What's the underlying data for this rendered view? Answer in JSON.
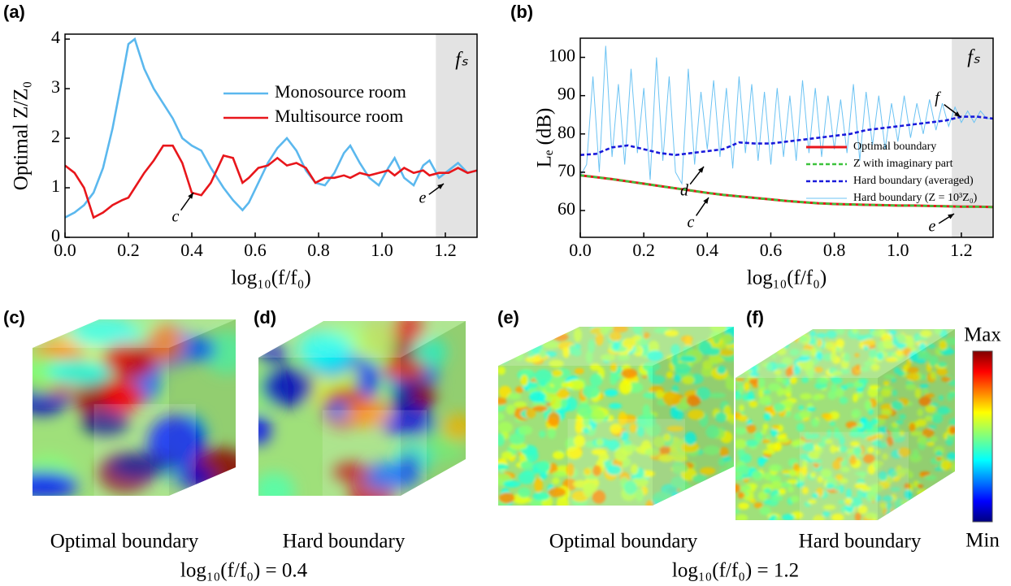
{
  "chart_data": [
    {
      "type": "line",
      "panel": "(a)",
      "ylabel": "Optimal Z/Z₀",
      "xlabel": "log₁₀(f/f₀)",
      "xlim": [
        0,
        1.3
      ],
      "ylim": [
        0,
        4.1
      ],
      "xticks": [
        {
          "value": 0,
          "label": "0.0"
        },
        0.2,
        0.4,
        0.6,
        0.8,
        {
          "value": 1,
          "label": "1.0"
        },
        1.2
      ],
      "yticks": [
        0,
        1,
        2,
        3,
        4
      ],
      "shaded_xrange": [
        1.17,
        1.3
      ],
      "legend": "upper right",
      "annotations": [
        "fₛ",
        "c",
        "e"
      ],
      "x": [
        0,
        0.03,
        0.06,
        0.09,
        0.12,
        0.15,
        0.18,
        0.2,
        0.22,
        0.25,
        0.28,
        0.31,
        0.34,
        0.37,
        0.4,
        0.43,
        0.46,
        0.5,
        0.53,
        0.56,
        0.58,
        0.61,
        0.64,
        0.67,
        0.7,
        0.73,
        0.76,
        0.79,
        0.82,
        0.85,
        0.88,
        0.9,
        0.93,
        0.96,
        0.99,
        1.02,
        1.04,
        1.07,
        1.1,
        1.13,
        1.15,
        1.18,
        1.21,
        1.24,
        1.27,
        1.3
      ],
      "series": [
        {
          "name": "Monosource room",
          "color": "#5bb8ee",
          "style": "solid",
          "values": [
            0.4,
            0.5,
            0.65,
            0.9,
            1.4,
            2.2,
            3.2,
            3.9,
            4.0,
            3.4,
            3.0,
            2.7,
            2.4,
            2.0,
            1.85,
            1.75,
            1.4,
            1.0,
            0.75,
            0.55,
            0.7,
            1.1,
            1.5,
            1.8,
            2.0,
            1.75,
            1.35,
            1.1,
            1.05,
            1.3,
            1.7,
            1.85,
            1.5,
            1.2,
            1.05,
            1.4,
            1.6,
            1.2,
            1.05,
            1.45,
            1.55,
            1.2,
            1.35,
            1.5,
            1.3,
            1.35
          ]
        },
        {
          "name": "Multisource room",
          "color": "#e8161b",
          "style": "solid",
          "values": [
            1.45,
            1.3,
            1.0,
            0.4,
            0.5,
            0.65,
            0.75,
            0.8,
            1.0,
            1.3,
            1.55,
            1.85,
            1.85,
            1.5,
            0.9,
            0.85,
            1.1,
            1.65,
            1.6,
            1.1,
            1.2,
            1.4,
            1.45,
            1.6,
            1.45,
            1.5,
            1.4,
            1.1,
            1.2,
            1.2,
            1.25,
            1.2,
            1.3,
            1.25,
            1.3,
            1.35,
            1.25,
            1.4,
            1.3,
            1.35,
            1.25,
            1.3,
            1.3,
            1.4,
            1.3,
            1.35
          ]
        }
      ]
    },
    {
      "type": "line",
      "panel": "(b)",
      "ylabel": "Lₑ (dB)",
      "xlabel": "log₁₀(f/f₀)",
      "xlim": [
        0,
        1.3
      ],
      "ylim": [
        53,
        105
      ],
      "xticks": [
        {
          "value": 0,
          "label": "0.0"
        },
        0.2,
        0.4,
        0.6,
        0.8,
        {
          "value": 1,
          "label": "1.0"
        },
        1.2
      ],
      "yticks": [
        60,
        70,
        80,
        90,
        100
      ],
      "shaded_xrange": [
        1.17,
        1.3
      ],
      "legend": "center right",
      "annotations": [
        "fₛ",
        "f",
        "d",
        "c",
        "e"
      ],
      "series": [
        {
          "name": "Hard boundary (Z = 10³Z₀)",
          "color": "#6cc3f3",
          "style": "thin",
          "x": [
            0,
            0.02,
            0.04,
            0.06,
            0.08,
            0.1,
            0.12,
            0.14,
            0.16,
            0.18,
            0.2,
            0.22,
            0.24,
            0.26,
            0.28,
            0.3,
            0.32,
            0.34,
            0.36,
            0.38,
            0.4,
            0.42,
            0.44,
            0.46,
            0.48,
            0.5,
            0.52,
            0.54,
            0.56,
            0.58,
            0.6,
            0.62,
            0.64,
            0.66,
            0.68,
            0.7,
            0.72,
            0.74,
            0.76,
            0.78,
            0.8,
            0.82,
            0.84,
            0.86,
            0.88,
            0.9,
            0.92,
            0.94,
            0.96,
            0.98,
            1,
            1.02,
            1.04,
            1.06,
            1.08,
            1.1,
            1.12,
            1.14,
            1.16,
            1.18,
            1.2,
            1.22,
            1.24,
            1.26,
            1.28,
            1.3
          ],
          "values": [
            69,
            72,
            95,
            70,
            103,
            74,
            93,
            72,
            97,
            75,
            92,
            68,
            100,
            73,
            95,
            70,
            67,
            97,
            72,
            91,
            76,
            94,
            74,
            92,
            71,
            95,
            75,
            93,
            73,
            91,
            72,
            92,
            74,
            90,
            73,
            94,
            75,
            92,
            74,
            90,
            76,
            89,
            75,
            93,
            73,
            91,
            77,
            90,
            76,
            88,
            78,
            90,
            79,
            88,
            80,
            89,
            81,
            88,
            82,
            87,
            83,
            86,
            83,
            86,
            84,
            84
          ]
        },
        {
          "name": "Optimal boundary",
          "color": "#e8161b",
          "style": "thick",
          "x": [
            0,
            0.05,
            0.1,
            0.15,
            0.2,
            0.25,
            0.3,
            0.35,
            0.4,
            0.45,
            0.5,
            0.55,
            0.6,
            0.65,
            0.7,
            0.75,
            0.8,
            0.85,
            0.9,
            0.95,
            1,
            1.05,
            1.1,
            1.15,
            1.2,
            1.25,
            1.3
          ],
          "values": [
            69.2,
            68.7,
            68.2,
            67.6,
            67.0,
            66.4,
            65.8,
            65.2,
            64.6,
            64.1,
            63.7,
            63.3,
            62.9,
            62.5,
            62.2,
            61.9,
            61.7,
            61.6,
            61.5,
            61.4,
            61.3,
            61.3,
            61.2,
            61.1,
            61.0,
            61.0,
            60.9
          ]
        },
        {
          "name": "Z with imaginary part",
          "color": "#3cc23c",
          "style": "dashed",
          "x": [
            0,
            0.05,
            0.1,
            0.15,
            0.2,
            0.25,
            0.3,
            0.35,
            0.4,
            0.45,
            0.5,
            0.55,
            0.6,
            0.65,
            0.7,
            0.75,
            0.8,
            0.85,
            0.9,
            0.95,
            1,
            1.05,
            1.1,
            1.15,
            1.2,
            1.25,
            1.3
          ],
          "values": [
            69.2,
            68.7,
            68.2,
            67.6,
            67.0,
            66.4,
            65.8,
            65.2,
            64.6,
            64.1,
            63.7,
            63.3,
            62.9,
            62.5,
            62.2,
            61.9,
            61.7,
            61.6,
            61.5,
            61.4,
            61.3,
            61.3,
            61.2,
            61.1,
            61.0,
            61.0,
            60.9
          ]
        },
        {
          "name": "Hard boundary (averaged)",
          "color": "#1a1adb",
          "style": "dashed",
          "x": [
            0,
            0.05,
            0.1,
            0.15,
            0.2,
            0.25,
            0.3,
            0.35,
            0.4,
            0.45,
            0.5,
            0.55,
            0.6,
            0.65,
            0.7,
            0.75,
            0.8,
            0.85,
            0.9,
            0.95,
            1,
            1.05,
            1.1,
            1.15,
            1.2,
            1.25,
            1.3
          ],
          "values": [
            74.5,
            74.8,
            76.5,
            77.0,
            76.0,
            75.0,
            74.5,
            75.0,
            75.5,
            76.0,
            77.8,
            77.5,
            77.5,
            78.0,
            78.5,
            79.0,
            79.5,
            80.0,
            81.0,
            81.5,
            82.0,
            82.5,
            83.0,
            83.5,
            84.5,
            84.5,
            84.0
          ]
        }
      ]
    }
  ],
  "panels": [
    {
      "label": "(c)",
      "caption": "Optimal boundary"
    },
    {
      "label": "(d)",
      "caption": "Hard boundary"
    },
    {
      "label": "(e)",
      "caption": "Optimal boundary"
    },
    {
      "label": "(f)",
      "caption": "Hard boundary"
    }
  ],
  "frequency_labels": [
    "log₁₀(f/f₀) = 0.4",
    "log₁₀(f/f₀) = 1.2"
  ],
  "colorbar": {
    "max": "Max",
    "min": "Min"
  }
}
